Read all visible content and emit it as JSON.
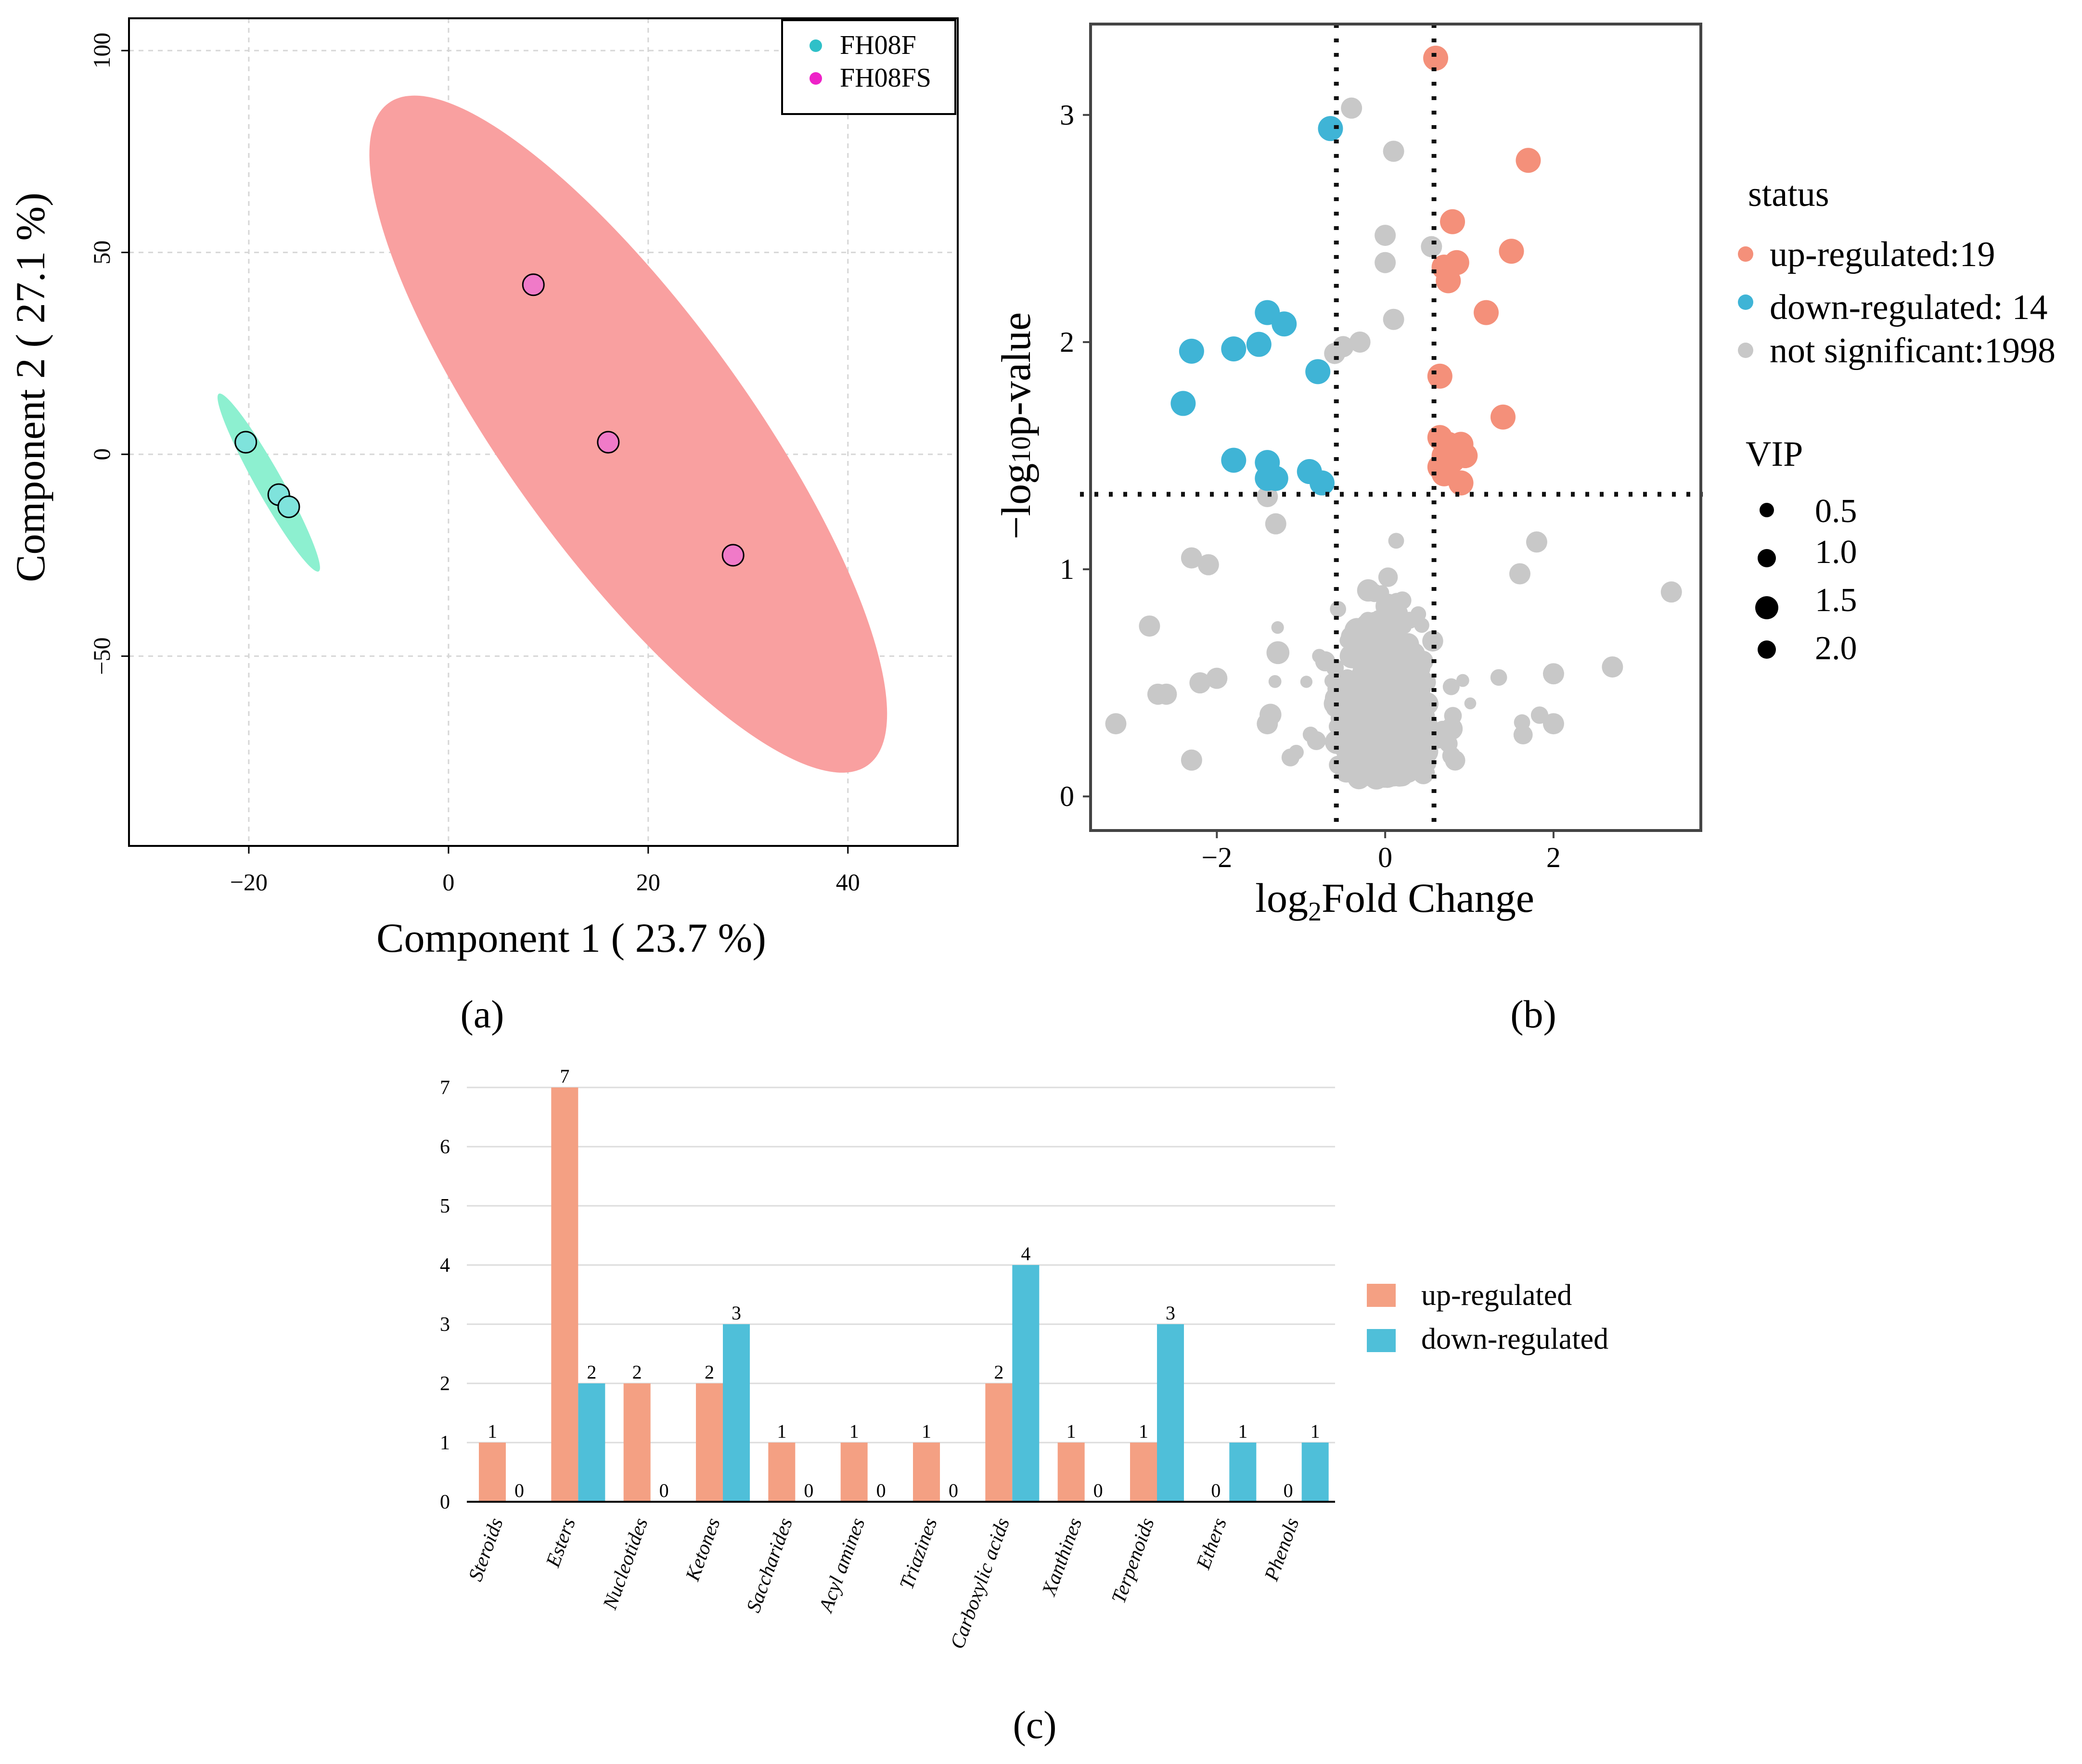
{
  "panel_labels": {
    "a": "(a)",
    "b": "(b)",
    "c": "(c)"
  },
  "colors": {
    "fh08f": "#2fc0c8",
    "fh08fs": "#ee22c8",
    "point_f": "#7fe3dc",
    "point_fs": "#f07ac8",
    "ellipse_f": "#8df0d0",
    "ellipse_fs": "#f9a0a0",
    "up": "#f4907a",
    "down": "#3fb4d6",
    "ns": "#c8c8c8",
    "bar_up": "#f4a083",
    "bar_down": "#4fbfd9"
  },
  "chart_data": [
    {
      "id": "a",
      "type": "scatter",
      "xlabel": "Component 1 ( 23.7 %)",
      "ylabel": "Component 2 ( 27.1 %)",
      "xlim": [
        -32,
        51
      ],
      "ylim": [
        -97,
        108
      ],
      "xticks": [
        -20,
        0,
        20,
        40
      ],
      "xtick_labels": [
        "−20",
        "0",
        "20",
        "40"
      ],
      "yticks": [
        -50,
        0,
        50,
        100
      ],
      "ytick_labels": [
        "−50",
        "0",
        "50",
        "100"
      ],
      "grid": true,
      "legend": {
        "position": "top-right",
        "entries": [
          "FH08F",
          "FH08FS"
        ]
      },
      "series": [
        {
          "name": "FH08F",
          "points": [
            [
              -20.3,
              3
            ],
            [
              -17,
              -10
            ],
            [
              -16,
              -13
            ]
          ],
          "ellipse": {
            "center": [
              -18,
              -7
            ],
            "axis_end": [
              -23,
              15
            ],
            "semi_minor": 0.6
          }
        },
        {
          "name": "FH08FS",
          "points": [
            [
              8.5,
              42
            ],
            [
              16,
              3
            ],
            [
              28.5,
              -25
            ]
          ],
          "ellipse": {
            "center": [
              18,
              5
            ],
            "axis_end": [
              -6,
              87
            ],
            "semi_minor": 5.5
          }
        }
      ]
    },
    {
      "id": "b",
      "type": "scatter",
      "xlabel": "log2Fold Change",
      "ylabel": "−log10p-value",
      "xlim": [
        -3.5,
        3.75
      ],
      "ylim": [
        -0.15,
        3.4
      ],
      "xticks": [
        -2,
        0,
        2
      ],
      "xtick_labels": [
        "−2",
        "0",
        "2"
      ],
      "yticks": [
        0,
        1,
        2,
        3
      ],
      "ytick_labels": [
        "0",
        "1",
        "2",
        "3"
      ],
      "thresholds": {
        "fc": [
          -0.58,
          0.58
        ],
        "p": 1.33
      },
      "legend_status_title": "status",
      "legend_status": [
        {
          "key": "up",
          "label": "up-regulated:19"
        },
        {
          "key": "down",
          "label": "down-regulated:  14"
        },
        {
          "key": "ns",
          "label": "not significant:1998"
        }
      ],
      "legend_vip_title": "VIP",
      "legend_vip": [
        {
          "label": "0.5",
          "value": 0.5
        },
        {
          "label": "1.0",
          "value": 1.0
        },
        {
          "label": "1.5",
          "value": 1.5
        },
        {
          "label": "2.0",
          "value": 2.0
        }
      ],
      "up_points": [
        [
          0.6,
          3.25
        ],
        [
          1.7,
          2.8
        ],
        [
          0.8,
          2.53
        ],
        [
          1.5,
          2.4
        ],
        [
          0.85,
          2.35
        ],
        [
          0.7,
          2.33
        ],
        [
          0.75,
          2.27
        ],
        [
          1.2,
          2.13
        ],
        [
          0.65,
          1.85
        ],
        [
          1.4,
          1.67
        ],
        [
          0.65,
          1.58
        ],
        [
          0.75,
          1.55
        ],
        [
          0.9,
          1.55
        ],
        [
          0.95,
          1.5
        ],
        [
          0.7,
          1.5
        ],
        [
          0.8,
          1.48
        ],
        [
          0.65,
          1.45
        ],
        [
          0.7,
          1.42
        ],
        [
          0.9,
          1.38
        ]
      ],
      "down_points": [
        [
          -0.65,
          2.94
        ],
        [
          -1.4,
          2.13
        ],
        [
          -1.2,
          2.08
        ],
        [
          -2.3,
          1.96
        ],
        [
          -1.8,
          1.97
        ],
        [
          -1.5,
          1.99
        ],
        [
          -0.8,
          1.87
        ],
        [
          -2.4,
          1.73
        ],
        [
          -1.8,
          1.48
        ],
        [
          -1.4,
          1.47
        ],
        [
          -0.9,
          1.43
        ],
        [
          -1.3,
          1.4
        ],
        [
          -1.4,
          1.4
        ],
        [
          -0.75,
          1.38
        ]
      ],
      "ns_sample_size": 1998
    },
    {
      "id": "c",
      "type": "bar",
      "categories": [
        "Steroids",
        "Esters",
        "Nucleotides",
        "Ketones",
        "Saccharides",
        "Acyl amines",
        "Triazines",
        "Carboxylic acids",
        "Xanthines",
        "Terpenoids",
        "Ethers",
        "Phenols"
      ],
      "series": [
        {
          "name": "up-regulated",
          "key": "bar_up",
          "values": [
            1,
            7,
            2,
            2,
            1,
            1,
            1,
            2,
            1,
            1,
            0,
            0
          ]
        },
        {
          "name": "down-regulated",
          "key": "bar_down",
          "values": [
            0,
            2,
            0,
            3,
            0,
            0,
            0,
            4,
            0,
            3,
            1,
            1
          ]
        }
      ],
      "ylim": [
        0,
        7
      ],
      "yticks": [
        0,
        1,
        2,
        3,
        4,
        5,
        6,
        7
      ],
      "grid": true,
      "legend": {
        "position": "right"
      }
    }
  ]
}
